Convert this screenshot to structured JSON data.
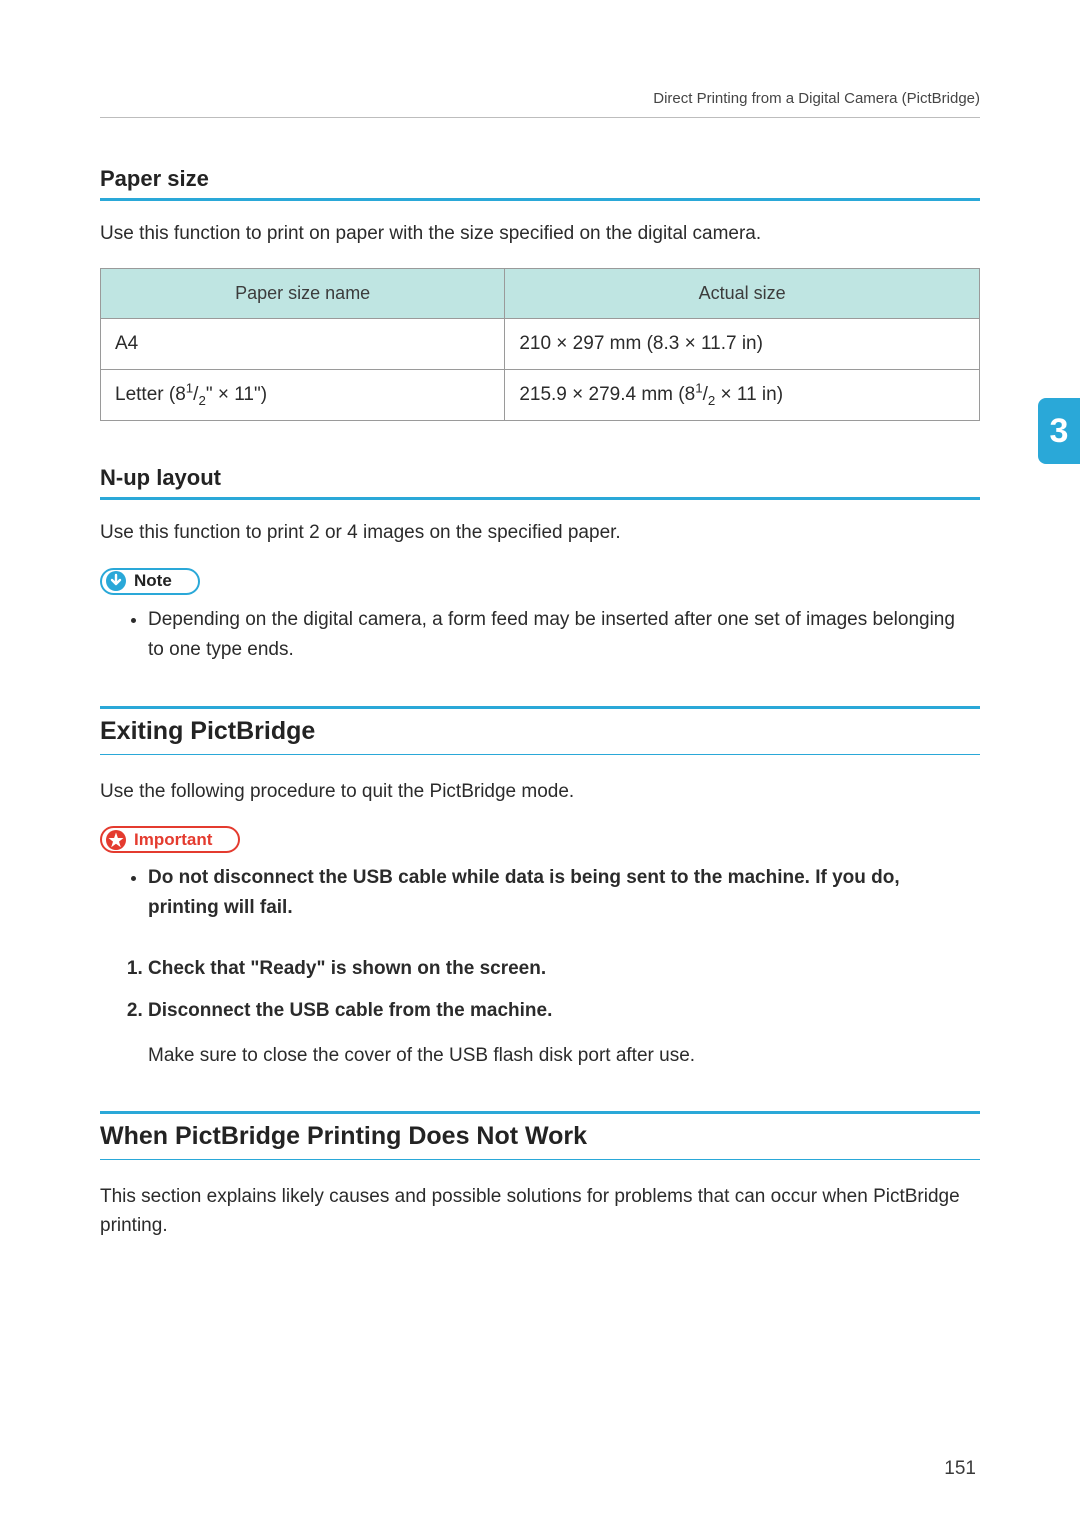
{
  "header": {
    "running_head": "Direct Printing from a Digital Camera (PictBridge)"
  },
  "index_tab": {
    "number": "3",
    "bg": "#2aa8d8",
    "fg": "#ffffff"
  },
  "page_number": "151",
  "paper_size": {
    "heading": "Paper size",
    "intro": "Use this function to print on paper with the size specified on the digital camera.",
    "col1": "Paper size name",
    "col2": "Actual size",
    "rows": [
      {
        "name_html": "A4",
        "actual_html": "210 × 297 mm (8.3 × 11.7 in)"
      },
      {
        "name_html": "Letter (8<sup>1</sup>/<sub>2</sub>\" × 11\")",
        "actual_html": "215.9 × 279.4 mm (8<sup>1</sup>/<sub>2</sub> × 11 in)"
      }
    ]
  },
  "nup": {
    "heading": "N-up layout",
    "intro": "Use this function to print 2 or 4 images on the specified paper.",
    "note_label": "Note",
    "note_bullet": "Depending on the digital camera, a form feed may be inserted after one set of images belonging to one type ends."
  },
  "exiting": {
    "heading": "Exiting PictBridge",
    "intro": "Use the following procedure to quit the PictBridge mode.",
    "important_label": "Important",
    "important_bullet": "Do not disconnect the USB cable while data is being sent to the machine. If you do, printing will fail.",
    "steps": [
      {
        "text": "Check that \"Ready\" is shown on the screen."
      },
      {
        "text": "Disconnect the USB cable from the machine.",
        "sub": "Make sure to close the cover of the USB flash disk port after use."
      }
    ]
  },
  "troubleshoot": {
    "heading": "When PictBridge Printing Does Not Work",
    "intro": "This section explains likely causes and possible solutions for problems that can occur when PictBridge printing."
  },
  "colors": {
    "accent": "#2aa8d8",
    "danger": "#e43b2f",
    "table_head_bg": "#bfe5e2",
    "border": "#9a9a9a"
  }
}
